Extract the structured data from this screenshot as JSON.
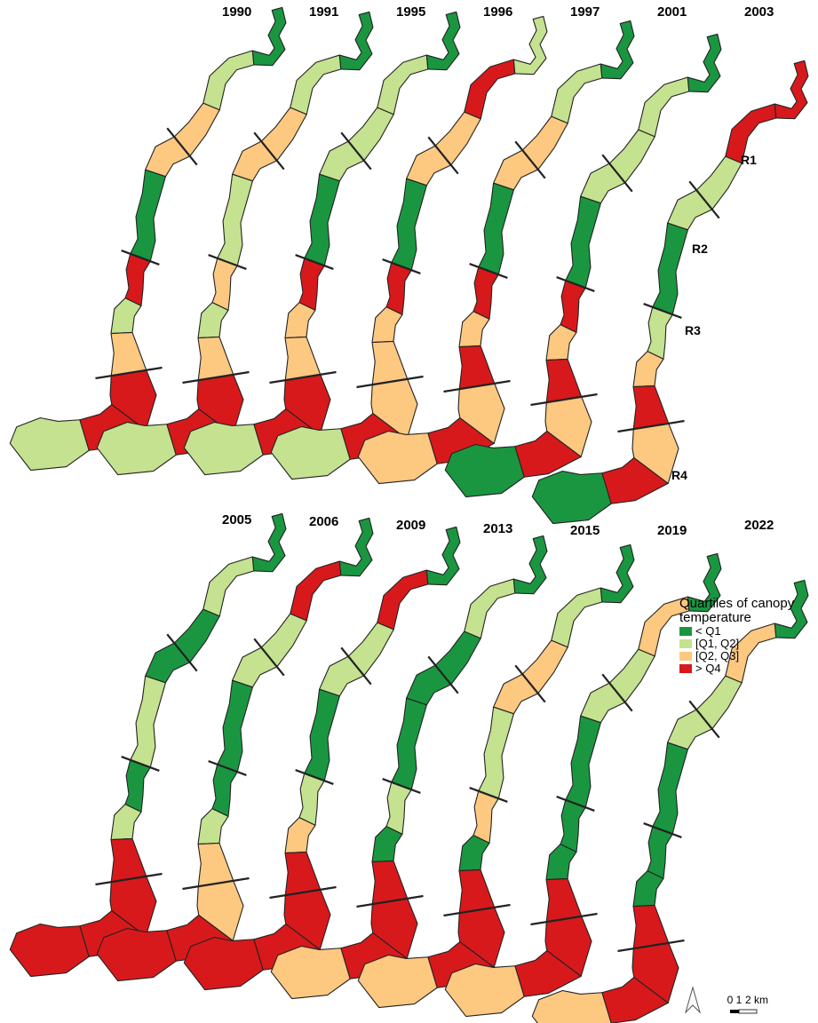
{
  "maps": [
    {
      "year": "1990",
      "segments": [
        0,
        1,
        2,
        0,
        3,
        1,
        2,
        3,
        3,
        1
      ]
    },
    {
      "year": "1991",
      "segments": [
        0,
        1,
        2,
        1,
        2,
        1,
        2,
        3,
        3,
        1
      ]
    },
    {
      "year": "1995",
      "segments": [
        0,
        1,
        1,
        0,
        3,
        2,
        2,
        3,
        3,
        1
      ]
    },
    {
      "year": "1996",
      "segments": [
        1,
        3,
        2,
        0,
        3,
        2,
        2,
        2,
        3,
        1
      ]
    },
    {
      "year": "1997",
      "segments": [
        0,
        1,
        2,
        0,
        3,
        2,
        3,
        2,
        3,
        2
      ]
    },
    {
      "year": "2001",
      "segments": [
        0,
        1,
        1,
        0,
        3,
        2,
        3,
        2,
        3,
        0
      ]
    },
    {
      "year": "2003",
      "segments": [
        3,
        3,
        1,
        0,
        1,
        2,
        3,
        2,
        3,
        0
      ]
    },
    {
      "year": "2005",
      "segments": [
        0,
        1,
        0,
        1,
        0,
        1,
        3,
        3,
        3,
        3
      ]
    },
    {
      "year": "2006",
      "segments": [
        0,
        3,
        1,
        0,
        0,
        1,
        2,
        2,
        3,
        3
      ]
    },
    {
      "year": "2009",
      "segments": [
        0,
        3,
        1,
        0,
        1,
        2,
        3,
        3,
        3,
        3
      ]
    },
    {
      "year": "2013",
      "segments": [
        0,
        1,
        0,
        0,
        1,
        0,
        3,
        3,
        3,
        2
      ]
    },
    {
      "year": "2015",
      "segments": [
        0,
        1,
        2,
        1,
        2,
        0,
        3,
        3,
        3,
        2
      ]
    },
    {
      "year": "2019",
      "segments": [
        0,
        2,
        1,
        0,
        0,
        0,
        3,
        3,
        3,
        2
      ]
    },
    {
      "year": "2022",
      "segments": [
        0,
        2,
        1,
        0,
        0,
        0,
        3,
        3,
        3,
        2
      ]
    }
  ],
  "regions": [
    "R1",
    "R2",
    "R3",
    "R4"
  ],
  "legend": {
    "title": "Quartiles of canopy temperature",
    "items": [
      {
        "label": "< Q1",
        "color": "#1a9641"
      },
      {
        "label": "[Q1, Q2]",
        "color": "#c4e28f"
      },
      {
        "label": "[Q2, Q3]",
        "color": "#fdc880"
      },
      {
        "label": "> Q4",
        "color": "#d7191c"
      }
    ]
  },
  "scale": {
    "labels": [
      "0",
      "1",
      "2 km"
    ]
  }
}
